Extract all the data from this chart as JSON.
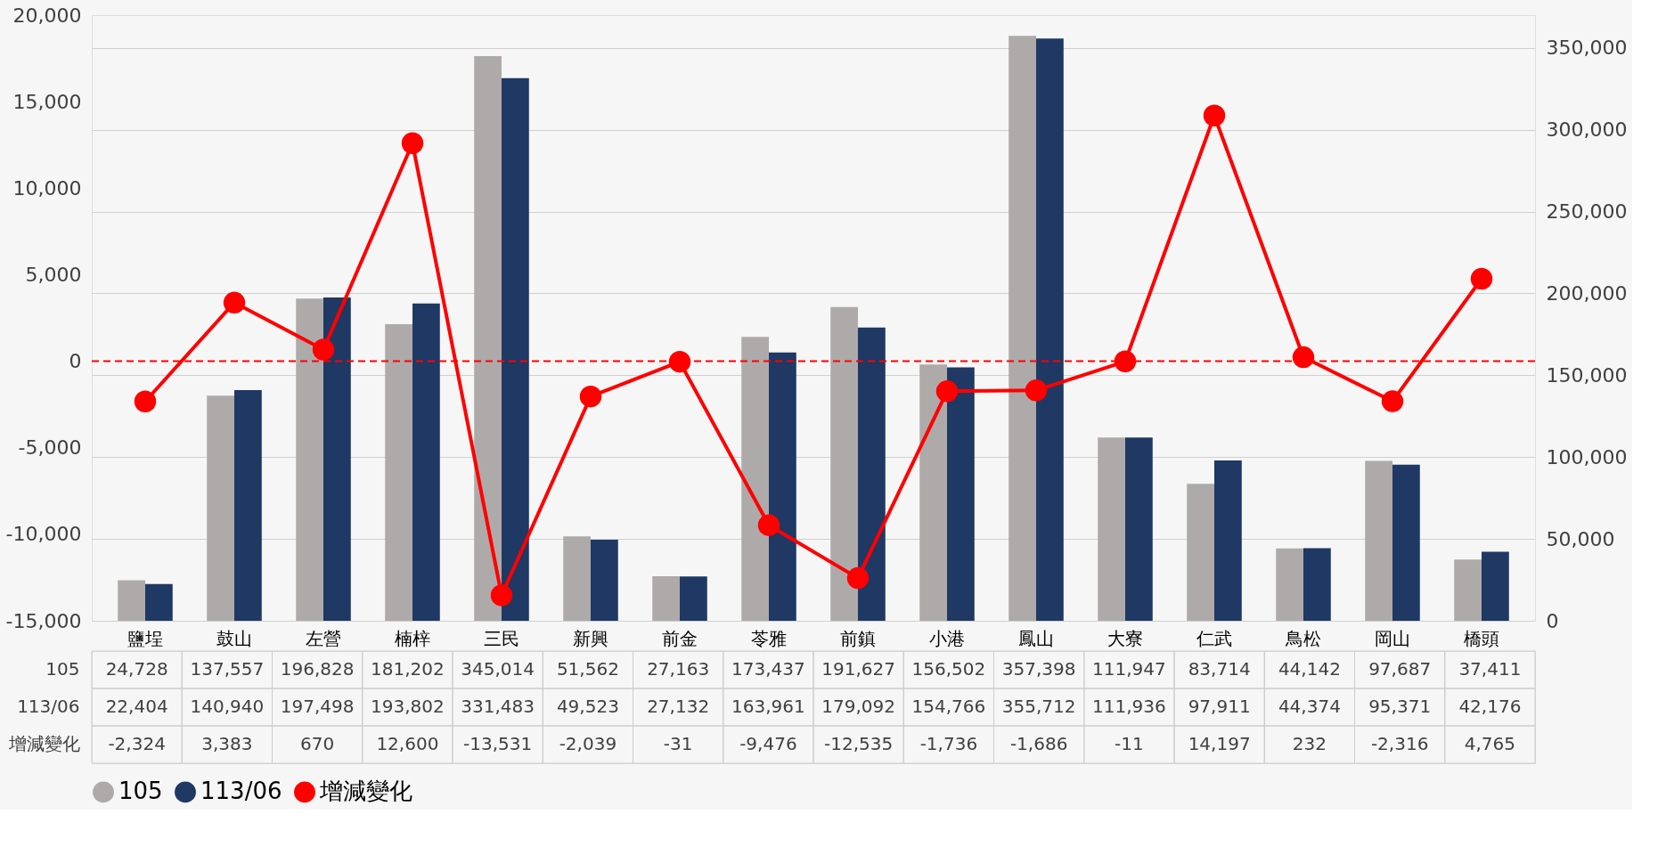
{
  "chart_data": {
    "type": "bar",
    "categories": [
      "鹽埕",
      "鼓山",
      "左營",
      "楠梓",
      "三民",
      "新興",
      "前金",
      "苓雅",
      "前鎮",
      "小港",
      "鳳山",
      "大寮",
      "仁武",
      "鳥松",
      "岡山",
      "橋頭"
    ],
    "series": [
      {
        "name": "105",
        "color": "#aeaaaa",
        "axis": "y2",
        "values": [
          24728,
          137557,
          196828,
          181202,
          345014,
          51562,
          27163,
          173437,
          191627,
          156502,
          357398,
          111947,
          83714,
          44142,
          97687,
          37411
        ],
        "value_labels": [
          "24,728",
          "137,557",
          "196,828",
          "181,202",
          "345,014",
          "51,562",
          "27,163",
          "173,437",
          "191,627",
          "156,502",
          "357,398",
          "111,947",
          "83,714",
          "44,142",
          "97,687",
          "37,411"
        ]
      },
      {
        "name": "113/06",
        "color": "#1f3864",
        "axis": "y2",
        "values": [
          22404,
          140940,
          197498,
          193802,
          331483,
          49523,
          27132,
          163961,
          179092,
          154766,
          355712,
          111936,
          97911,
          44374,
          95371,
          42176
        ],
        "value_labels": [
          "22,404",
          "140,940",
          "197,498",
          "193,802",
          "331,483",
          "49,523",
          "27,132",
          "163,961",
          "179,092",
          "154,766",
          "355,712",
          "111,936",
          "97,911",
          "44,374",
          "95,371",
          "42,176"
        ]
      },
      {
        "name": "增減變化",
        "color": "#ff0000",
        "type": "line",
        "axis": "y",
        "marker": "circle",
        "line_style": "solid",
        "values": [
          -2324,
          3383,
          670,
          12600,
          -13531,
          -2039,
          -31,
          -9476,
          -12535,
          -1736,
          -1686,
          -11,
          14197,
          232,
          -2316,
          4765
        ],
        "value_labels": [
          "-2,324",
          "3,383",
          "670",
          "12,600",
          "-13,531",
          "-2,039",
          "-31",
          "-9,476",
          "-12,535",
          "-1,736",
          "-1,686",
          "-11",
          "14,197",
          "232",
          "-2,316",
          "4,765"
        ]
      }
    ],
    "ylim": [
      -15000,
      20000
    ],
    "yticks": [
      {
        "value": -15000,
        "label": "-15,000"
      },
      {
        "value": -10000,
        "label": "-10,000"
      },
      {
        "value": -5000,
        "label": "-5,000"
      },
      0,
      {
        "value": 5000,
        "label": "5,000"
      },
      {
        "value": 10000,
        "label": "10,000"
      },
      {
        "value": 15000,
        "label": "15,000"
      },
      {
        "value": 20000,
        "label": "20,000"
      }
    ],
    "y2lim": [
      0,
      370000
    ],
    "y2ticks": [
      0,
      {
        "value": 50000,
        "label": "50,000"
      },
      {
        "value": 100000,
        "label": "100,000"
      },
      {
        "value": 150000,
        "label": "150,000"
      },
      {
        "value": 200000,
        "label": "200,000"
      },
      {
        "value": 250000,
        "label": "250,000"
      },
      {
        "value": 300000,
        "label": "300,000"
      },
      {
        "value": 350000,
        "label": "350,000"
      }
    ],
    "ref_lines": [
      {
        "axis": "y",
        "value": 0,
        "color": "#ff0000",
        "line_style": "dashed"
      }
    ],
    "grid": true,
    "legend": "bottom"
  }
}
